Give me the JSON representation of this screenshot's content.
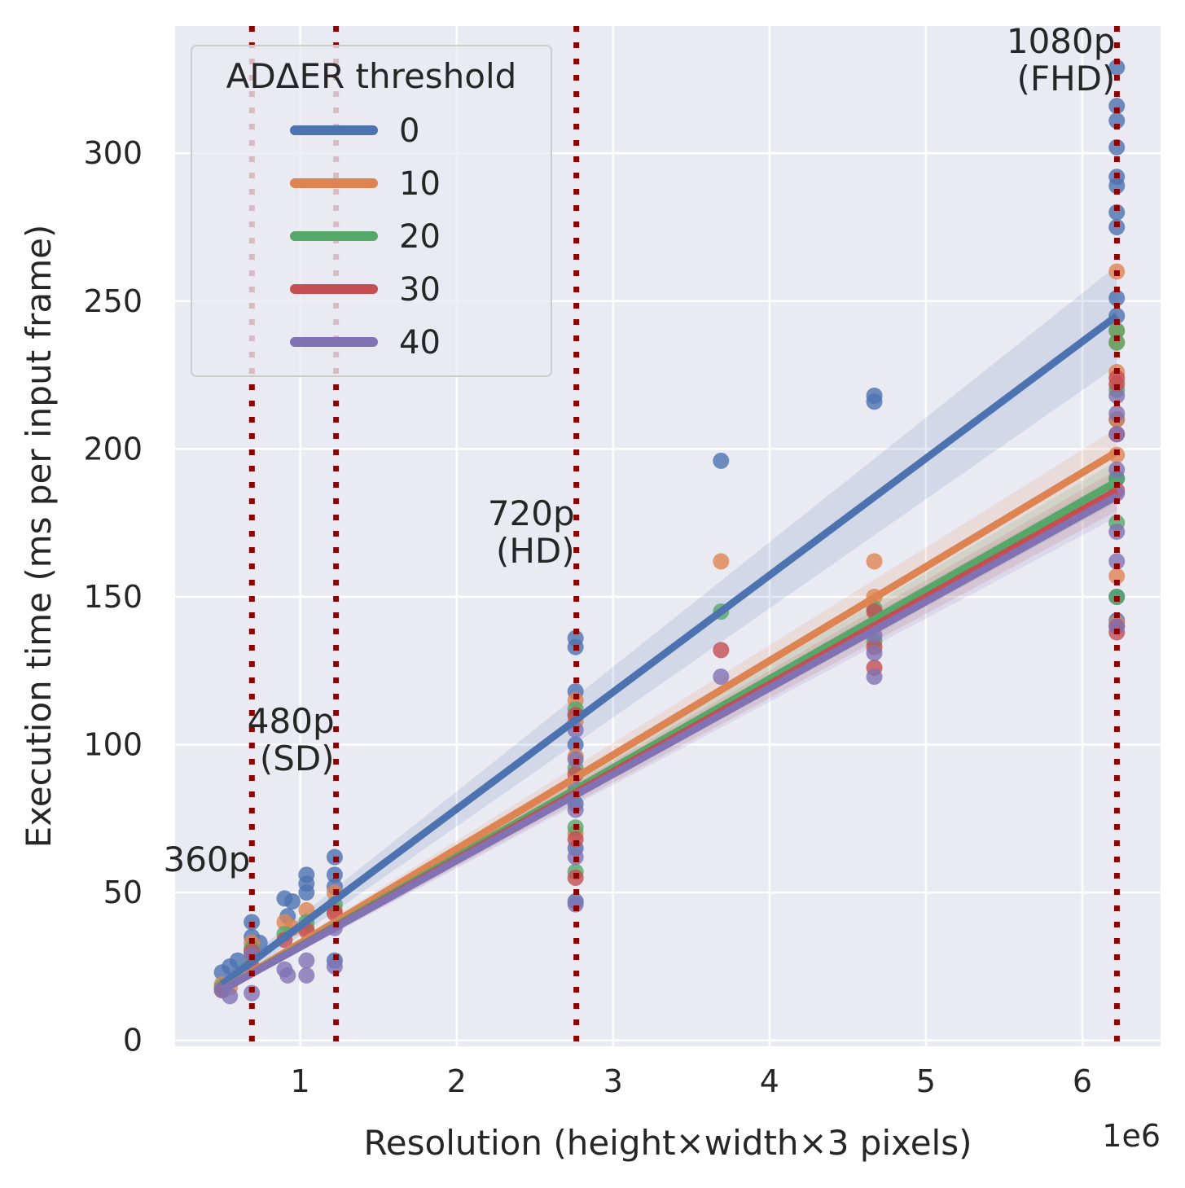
{
  "chart_data": {
    "type": "scatter",
    "xlabel": "Resolution (height×width×3 pixels)",
    "ylabel": "Execution time (ms per input frame)",
    "x_offset_label": "1e6",
    "xlim": [
      0.2,
      6.5
    ],
    "ylim": [
      -2,
      343
    ],
    "x_ticks": [
      1,
      2,
      3,
      4,
      5,
      6
    ],
    "y_ticks": [
      0,
      50,
      100,
      150,
      200,
      250,
      300
    ],
    "grid": true,
    "legend": {
      "title": "ADΔER threshold",
      "position": "top-left",
      "entries": [
        "0",
        "10",
        "20",
        "30",
        "40"
      ]
    },
    "reference_lines": [
      {
        "x": 0.691,
        "label": "360p"
      },
      {
        "x": 1.229,
        "label": "480p\n(SD)"
      },
      {
        "x": 2.765,
        "label": "720p\n(HD)"
      },
      {
        "x": 6.221,
        "label": "1080p\n(FHD)"
      }
    ],
    "series": [
      {
        "name": "0",
        "color": "#4c72b0",
        "fit": {
          "x": [
            0.5,
            6.22
          ],
          "y": [
            19,
            245
          ]
        },
        "ci": {
          "lower": [
            17,
            228
          ],
          "upper": [
            21,
            262
          ]
        },
        "points": [
          [
            0.5,
            23
          ],
          [
            0.55,
            25
          ],
          [
            0.6,
            27
          ],
          [
            0.69,
            40
          ],
          [
            0.69,
            35
          ],
          [
            0.74,
            33
          ],
          [
            0.9,
            48
          ],
          [
            0.92,
            42
          ],
          [
            0.95,
            47
          ],
          [
            1.04,
            56
          ],
          [
            1.04,
            50
          ],
          [
            1.04,
            53
          ],
          [
            1.22,
            62
          ],
          [
            1.22,
            56
          ],
          [
            1.22,
            52
          ],
          [
            1.22,
            27
          ],
          [
            2.76,
            136
          ],
          [
            2.76,
            133
          ],
          [
            2.76,
            118
          ],
          [
            2.76,
            110
          ],
          [
            2.76,
            100
          ],
          [
            2.76,
            80
          ],
          [
            2.76,
            65
          ],
          [
            2.76,
            47
          ],
          [
            3.69,
            196
          ],
          [
            4.67,
            218
          ],
          [
            4.67,
            216
          ],
          [
            6.22,
            329
          ],
          [
            6.22,
            316
          ],
          [
            6.22,
            311
          ],
          [
            6.22,
            302
          ],
          [
            6.22,
            292
          ],
          [
            6.22,
            289
          ],
          [
            6.22,
            280
          ],
          [
            6.22,
            275
          ],
          [
            6.22,
            251
          ],
          [
            6.22,
            245
          ],
          [
            6.22,
            210
          ],
          [
            6.22,
            190
          ],
          [
            6.22,
            150
          ],
          [
            6.22,
            142
          ]
        ]
      },
      {
        "name": "10",
        "color": "#dd8452",
        "fit": {
          "x": [
            0.5,
            6.22
          ],
          "y": [
            17,
            199
          ]
        },
        "ci": {
          "lower": [
            16,
            191
          ],
          "upper": [
            18,
            207
          ]
        },
        "points": [
          [
            0.5,
            19
          ],
          [
            0.55,
            18
          ],
          [
            0.69,
            33
          ],
          [
            0.69,
            30
          ],
          [
            0.9,
            40
          ],
          [
            0.95,
            38
          ],
          [
            1.04,
            44
          ],
          [
            1.04,
            38
          ],
          [
            1.22,
            50
          ],
          [
            1.22,
            44
          ],
          [
            2.76,
            115
          ],
          [
            2.76,
            108
          ],
          [
            2.76,
            96
          ],
          [
            2.76,
            70
          ],
          [
            3.69,
            162
          ],
          [
            4.67,
            162
          ],
          [
            4.67,
            150
          ],
          [
            6.22,
            260
          ],
          [
            6.22,
            240
          ],
          [
            6.22,
            236
          ],
          [
            6.22,
            226
          ],
          [
            6.22,
            210
          ],
          [
            6.22,
            198
          ],
          [
            6.22,
            157
          ],
          [
            6.22,
            141
          ]
        ]
      },
      {
        "name": "20",
        "color": "#55a868",
        "fit": {
          "x": [
            0.5,
            6.22
          ],
          "y": [
            17,
            189
          ]
        },
        "ci": {
          "lower": [
            16,
            182
          ],
          "upper": [
            18,
            196
          ]
        },
        "points": [
          [
            0.5,
            18
          ],
          [
            0.69,
            31
          ],
          [
            0.69,
            28
          ],
          [
            0.9,
            36
          ],
          [
            1.04,
            40
          ],
          [
            1.22,
            46
          ],
          [
            2.76,
            112
          ],
          [
            2.76,
            92
          ],
          [
            2.76,
            72
          ],
          [
            2.76,
            57
          ],
          [
            3.69,
            145
          ],
          [
            4.67,
            146
          ],
          [
            4.67,
            135
          ],
          [
            6.22,
            240
          ],
          [
            6.22,
            236
          ],
          [
            6.22,
            220
          ],
          [
            6.22,
            190
          ],
          [
            6.22,
            175
          ],
          [
            6.22,
            150
          ]
        ]
      },
      {
        "name": "30",
        "color": "#c44e52",
        "fit": {
          "x": [
            0.5,
            6.22
          ],
          "y": [
            17,
            186
          ]
        },
        "ci": {
          "lower": [
            16,
            179
          ],
          "upper": [
            18,
            193
          ]
        },
        "points": [
          [
            0.5,
            17
          ],
          [
            0.69,
            30
          ],
          [
            0.69,
            25
          ],
          [
            0.9,
            34
          ],
          [
            1.04,
            37
          ],
          [
            1.22,
            43
          ],
          [
            2.76,
            110
          ],
          [
            2.76,
            90
          ],
          [
            2.76,
            68
          ],
          [
            2.76,
            55
          ],
          [
            3.69,
            132
          ],
          [
            4.67,
            145
          ],
          [
            4.67,
            133
          ],
          [
            4.67,
            126
          ],
          [
            6.22,
            224
          ],
          [
            6.22,
            222
          ],
          [
            6.22,
            205
          ],
          [
            6.22,
            186
          ],
          [
            6.22,
            140
          ],
          [
            6.22,
            138
          ]
        ]
      },
      {
        "name": "40",
        "color": "#8172b3",
        "fit": {
          "x": [
            0.5,
            6.22
          ],
          "y": [
            17,
            184
          ]
        },
        "ci": {
          "lower": [
            16,
            177
          ],
          "upper": [
            18,
            191
          ]
        },
        "points": [
          [
            0.5,
            17
          ],
          [
            0.55,
            15
          ],
          [
            0.69,
            29
          ],
          [
            0.69,
            16
          ],
          [
            0.9,
            24
          ],
          [
            0.92,
            22
          ],
          [
            1.04,
            27
          ],
          [
            1.04,
            22
          ],
          [
            1.22,
            38
          ],
          [
            1.22,
            25
          ],
          [
            2.76,
            105
          ],
          [
            2.76,
            95
          ],
          [
            2.76,
            85
          ],
          [
            2.76,
            78
          ],
          [
            2.76,
            62
          ],
          [
            2.76,
            46
          ],
          [
            3.69,
            123
          ],
          [
            4.67,
            137
          ],
          [
            4.67,
            131
          ],
          [
            4.67,
            123
          ],
          [
            6.22,
            218
          ],
          [
            6.22,
            212
          ],
          [
            6.22,
            205
          ],
          [
            6.22,
            193
          ],
          [
            6.22,
            185
          ],
          [
            6.22,
            172
          ],
          [
            6.22,
            162
          ],
          [
            6.22,
            140
          ]
        ]
      }
    ]
  }
}
